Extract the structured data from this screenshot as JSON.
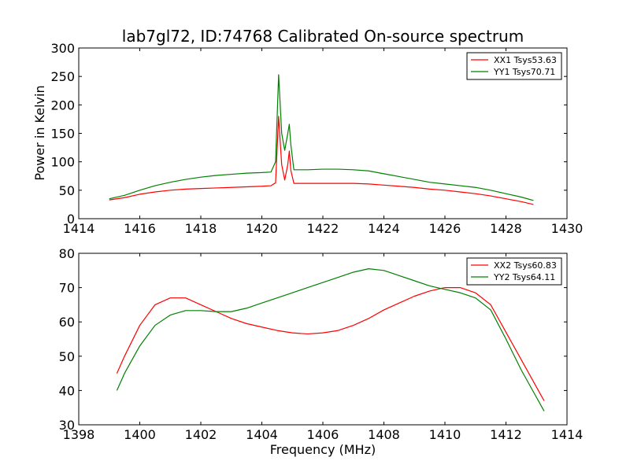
{
  "chart_data": [
    {
      "type": "line",
      "title": "lab7gl72, ID:74768 Calibrated On-source spectrum",
      "xlabel": "",
      "ylabel": "Power in Kelvin",
      "xlim": [
        1414,
        1430
      ],
      "ylim": [
        0,
        300
      ],
      "xticks": [
        "1414",
        "1416",
        "1418",
        "1420",
        "1422",
        "1424",
        "1426",
        "1428",
        "1430"
      ],
      "yticks": [
        "0",
        "50",
        "100",
        "150",
        "200",
        "250",
        "300"
      ],
      "legend_position": "top-right",
      "grid": false,
      "series": [
        {
          "name": "XX1 Tsys53.63",
          "color": "#ff0000",
          "points": [
            [
              1415.0,
              33
            ],
            [
              1415.5,
              37
            ],
            [
              1416.0,
              43
            ],
            [
              1416.5,
              47
            ],
            [
              1417.0,
              50
            ],
            [
              1417.5,
              52
            ],
            [
              1418.0,
              53
            ],
            [
              1418.5,
              54
            ],
            [
              1419.0,
              55
            ],
            [
              1419.5,
              56
            ],
            [
              1420.0,
              57
            ],
            [
              1420.3,
              58
            ],
            [
              1420.45,
              63
            ],
            [
              1420.55,
              180
            ],
            [
              1420.65,
              95
            ],
            [
              1420.75,
              68
            ],
            [
              1420.85,
              95
            ],
            [
              1420.9,
              119
            ],
            [
              1420.95,
              85
            ],
            [
              1421.05,
              62
            ],
            [
              1421.5,
              62
            ],
            [
              1422.0,
              62
            ],
            [
              1422.5,
              62
            ],
            [
              1423.0,
              62
            ],
            [
              1423.5,
              61
            ],
            [
              1424.0,
              59
            ],
            [
              1424.5,
              57
            ],
            [
              1425.0,
              55
            ],
            [
              1425.5,
              52
            ],
            [
              1426.0,
              50
            ],
            [
              1426.5,
              47
            ],
            [
              1427.0,
              44
            ],
            [
              1427.5,
              40
            ],
            [
              1428.0,
              35
            ],
            [
              1428.5,
              30
            ],
            [
              1428.9,
              25
            ]
          ]
        },
        {
          "name": "YY1 Tsys70.71",
          "color": "#008000",
          "points": [
            [
              1415.0,
              35
            ],
            [
              1415.5,
              41
            ],
            [
              1416.0,
              50
            ],
            [
              1416.5,
              58
            ],
            [
              1417.0,
              64
            ],
            [
              1417.5,
              69
            ],
            [
              1418.0,
              73
            ],
            [
              1418.5,
              76
            ],
            [
              1419.0,
              78
            ],
            [
              1419.5,
              80
            ],
            [
              1420.0,
              81
            ],
            [
              1420.3,
              82
            ],
            [
              1420.45,
              100
            ],
            [
              1420.55,
              253
            ],
            [
              1420.65,
              150
            ],
            [
              1420.75,
              120
            ],
            [
              1420.85,
              150
            ],
            [
              1420.9,
              166
            ],
            [
              1420.95,
              130
            ],
            [
              1421.05,
              86
            ],
            [
              1421.5,
              86
            ],
            [
              1422.0,
              87
            ],
            [
              1422.5,
              87
            ],
            [
              1423.0,
              86
            ],
            [
              1423.5,
              84
            ],
            [
              1424.0,
              79
            ],
            [
              1424.5,
              74
            ],
            [
              1425.0,
              69
            ],
            [
              1425.5,
              64
            ],
            [
              1426.0,
              61
            ],
            [
              1426.5,
              58
            ],
            [
              1427.0,
              55
            ],
            [
              1427.5,
              50
            ],
            [
              1428.0,
              44
            ],
            [
              1428.5,
              38
            ],
            [
              1428.9,
              32
            ]
          ]
        }
      ]
    },
    {
      "type": "line",
      "title": "",
      "xlabel": "Frequency (MHz)",
      "ylabel": "",
      "xlim": [
        1398,
        1414
      ],
      "ylim": [
        30,
        80
      ],
      "xticks": [
        "1398",
        "1400",
        "1402",
        "1404",
        "1406",
        "1408",
        "1410",
        "1412",
        "1414"
      ],
      "yticks": [
        "30",
        "40",
        "50",
        "60",
        "70",
        "80"
      ],
      "legend_position": "top-right",
      "grid": false,
      "series": [
        {
          "name": "XX2 Tsys60.83",
          "color": "#ff0000",
          "points": [
            [
              1399.25,
              45
            ],
            [
              1399.5,
              50
            ],
            [
              1400.0,
              59
            ],
            [
              1400.5,
              65
            ],
            [
              1401.0,
              67
            ],
            [
              1401.5,
              67
            ],
            [
              1402.0,
              65
            ],
            [
              1402.5,
              63
            ],
            [
              1403.0,
              61
            ],
            [
              1403.5,
              59.5
            ],
            [
              1404.0,
              58.5
            ],
            [
              1404.5,
              57.5
            ],
            [
              1405.0,
              56.8
            ],
            [
              1405.5,
              56.5
            ],
            [
              1406.0,
              56.8
            ],
            [
              1406.5,
              57.5
            ],
            [
              1407.0,
              59
            ],
            [
              1407.5,
              61
            ],
            [
              1408.0,
              63.5
            ],
            [
              1408.5,
              65.5
            ],
            [
              1409.0,
              67.5
            ],
            [
              1409.5,
              69
            ],
            [
              1410.0,
              70
            ],
            [
              1410.5,
              70
            ],
            [
              1411.0,
              68.5
            ],
            [
              1411.5,
              65
            ],
            [
              1412.0,
              57
            ],
            [
              1412.5,
              49
            ],
            [
              1413.0,
              41
            ],
            [
              1413.25,
              37
            ]
          ]
        },
        {
          "name": "YY2 Tsys64.11",
          "color": "#008000",
          "points": [
            [
              1399.25,
              40
            ],
            [
              1399.5,
              45
            ],
            [
              1400.0,
              53
            ],
            [
              1400.5,
              59
            ],
            [
              1401.0,
              62
            ],
            [
              1401.5,
              63.3
            ],
            [
              1402.0,
              63.3
            ],
            [
              1402.5,
              63
            ],
            [
              1403.0,
              63
            ],
            [
              1403.5,
              64
            ],
            [
              1404.0,
              65.5
            ],
            [
              1404.5,
              67
            ],
            [
              1405.0,
              68.5
            ],
            [
              1405.5,
              70
            ],
            [
              1406.0,
              71.5
            ],
            [
              1406.5,
              73
            ],
            [
              1407.0,
              74.5
            ],
            [
              1407.5,
              75.5
            ],
            [
              1408.0,
              75
            ],
            [
              1408.5,
              73.5
            ],
            [
              1409.0,
              72
            ],
            [
              1409.5,
              70.5
            ],
            [
              1410.0,
              69.5
            ],
            [
              1410.5,
              68.5
            ],
            [
              1411.0,
              67
            ],
            [
              1411.5,
              63.5
            ],
            [
              1412.0,
              55
            ],
            [
              1412.5,
              46
            ],
            [
              1413.0,
              38
            ],
            [
              1413.25,
              34
            ]
          ]
        }
      ]
    }
  ]
}
